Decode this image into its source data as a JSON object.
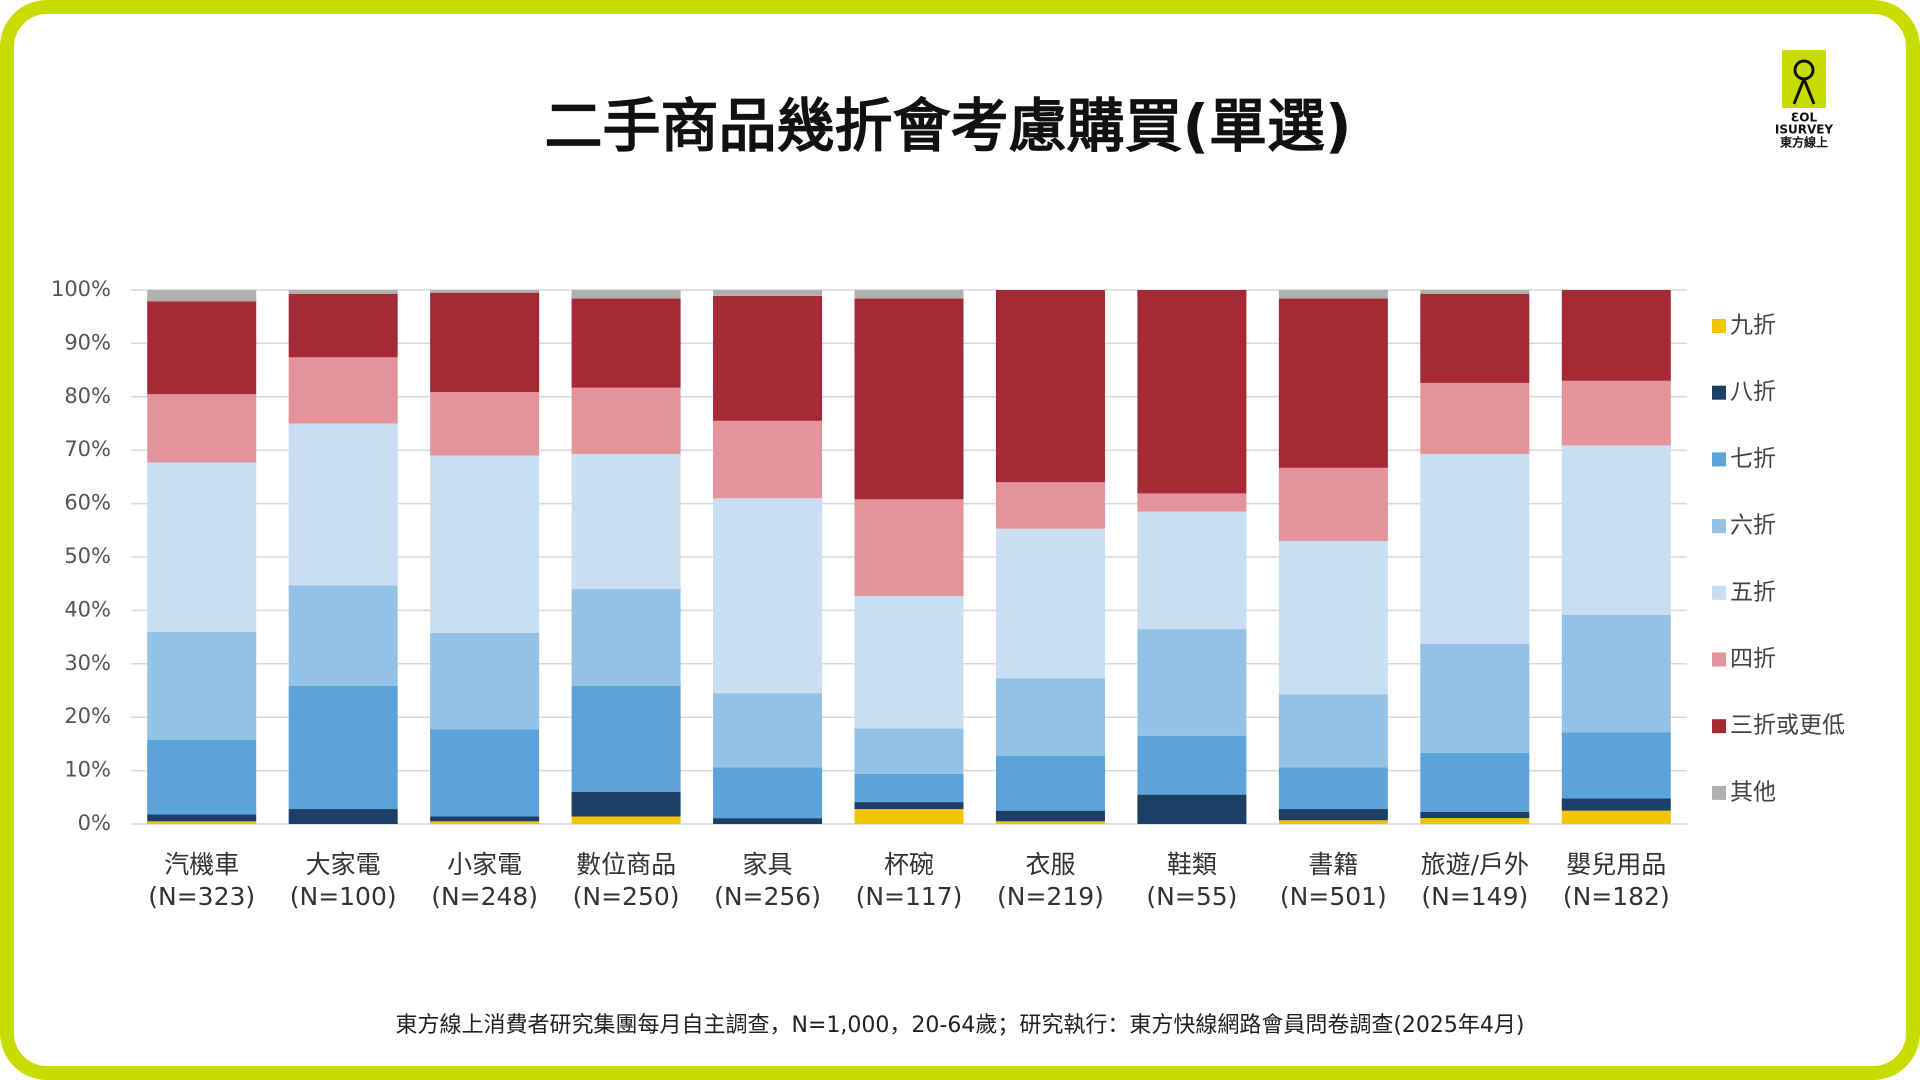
{
  "chart_data": {
    "type": "stacked_bar",
    "title": "二手商品幾折會考慮購買(單選)",
    "footnote": "東方線上消費者研究集團每月自主調查，N=1,000，20-64歲；研究執行：東方快線網路會員問卷調查(2025年4月)",
    "logo": {
      "line1": "ƐOL",
      "line2": "ISURVEY",
      "line3": "東方線上"
    },
    "categories": [
      "汽機車",
      "大家電",
      "小家電",
      "數位商品",
      "家具",
      "杯碗",
      "衣服",
      "鞋類",
      "書籍",
      "旅遊/戶外",
      "嬰兒用品"
    ],
    "category_samples": [
      "(N=323)",
      "(N=100)",
      "(N=248)",
      "(N=250)",
      "(N=256)",
      "(N=117)",
      "(N=219)",
      "(N=55)",
      "(N=501)",
      "(N=149)",
      "(N=182)"
    ],
    "series": [
      {
        "name": "九折",
        "color": "#f5c400",
        "values": [
          0.5,
          0,
          0.5,
          1.4,
          0,
          2.8,
          0.5,
          0,
          0.7,
          1.1,
          2.5
        ]
      },
      {
        "name": "八折",
        "color": "#1b3f66",
        "values": [
          1.3,
          2.8,
          0.9,
          4.6,
          1.1,
          1.3,
          2,
          5.5,
          2.1,
          1.2,
          2.3
        ]
      },
      {
        "name": "七折",
        "color": "#5ba3d9",
        "values": [
          14,
          23.1,
          16.3,
          19.9,
          9.5,
          5.3,
          10.3,
          11,
          7.8,
          11,
          12.4
        ]
      },
      {
        "name": "六折",
        "color": "#94c2e6",
        "values": [
          20.2,
          18.8,
          18.1,
          18.1,
          13.9,
          8.5,
          14.5,
          20,
          13.7,
          20.4,
          22
        ]
      },
      {
        "name": "五折",
        "color": "#c9def2",
        "values": [
          31.7,
          30.3,
          33.2,
          25.3,
          36.5,
          24.8,
          28,
          22,
          28.7,
          35.6,
          31.7
        ]
      },
      {
        "name": "四折",
        "color": "#e5939a",
        "values": [
          12.8,
          12.4,
          11.9,
          12.4,
          14.5,
          18.1,
          8.7,
          3.4,
          13.7,
          13.3,
          12.1
        ]
      },
      {
        "name": "三折或更低",
        "color": "#a52a35",
        "values": [
          17.4,
          11.9,
          18.6,
          16.7,
          23.4,
          37.6,
          36,
          38.1,
          31.7,
          16.7,
          17
        ]
      },
      {
        "name": "其他",
        "color": "#b0b0b0",
        "values": [
          2.1,
          0.7,
          0.5,
          1.6,
          1.1,
          1.6,
          0,
          0,
          1.6,
          0.7,
          0
        ]
      }
    ],
    "ylim": [
      0,
      100
    ],
    "yticks": [
      {
        "value": 0,
        "label": "0%"
      },
      {
        "value": 10,
        "label": "10%"
      },
      {
        "value": 20,
        "label": "20%"
      },
      {
        "value": 30,
        "label": "30%"
      },
      {
        "value": 40,
        "label": "40%"
      },
      {
        "value": 50,
        "label": "50%"
      },
      {
        "value": 60,
        "label": "60%"
      },
      {
        "value": 70,
        "label": "70%"
      },
      {
        "value": 80,
        "label": "80%"
      },
      {
        "value": 90,
        "label": "90%"
      },
      {
        "value": 100,
        "label": "100%"
      }
    ],
    "grid": true,
    "legend": "right"
  }
}
